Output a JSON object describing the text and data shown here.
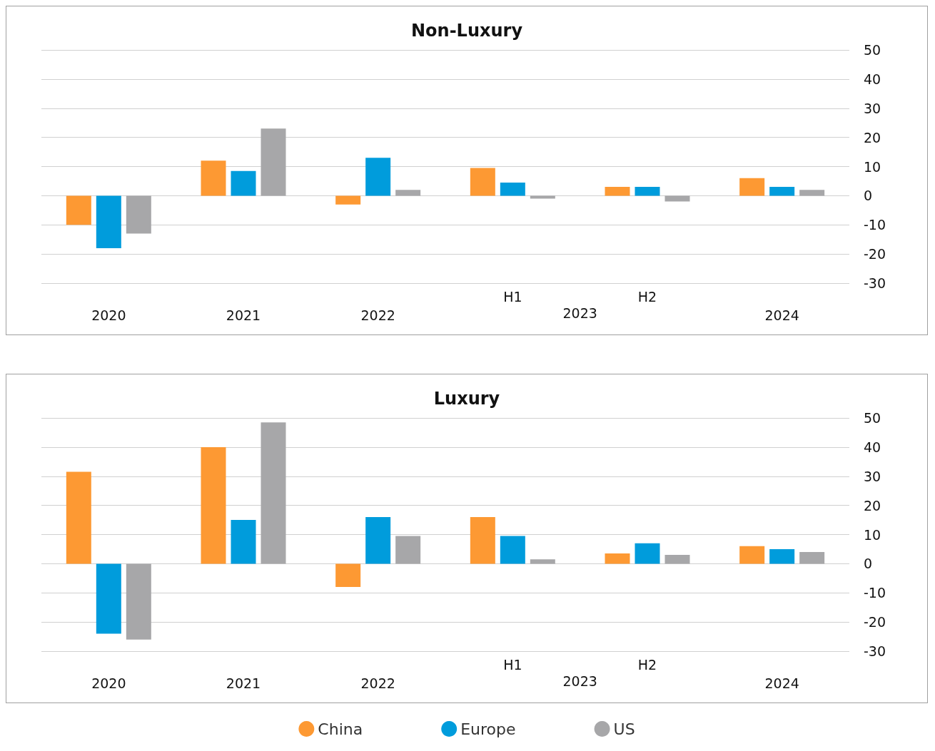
{
  "chart_data": [
    {
      "type": "bar",
      "title": "Non-Luxury",
      "categories": [
        "2020",
        "2021",
        "2022",
        "H1",
        "H2",
        "2024"
      ],
      "annotations": [
        "2023"
      ],
      "series": [
        {
          "color": "#fd9933",
          "values": [
            -10,
            12,
            -3,
            9.5,
            3,
            6
          ]
        },
        {
          "color": "#009cdc",
          "values": [
            -18,
            8.5,
            13,
            4.5,
            3,
            3
          ]
        },
        {
          "color": "#a7a7a9",
          "values": [
            -13,
            23,
            2,
            -1,
            -2,
            2
          ]
        }
      ],
      "ylim": [
        -30,
        50
      ],
      "yticks": [
        -30,
        -20,
        -10,
        0,
        10,
        20,
        30,
        40,
        50
      ],
      "grid": "y",
      "legend": false
    },
    {
      "type": "bar",
      "title": "Luxury",
      "categories": [
        "2020",
        "2021",
        "2022",
        "H1",
        "H2",
        "2024"
      ],
      "annotations": [
        "2023"
      ],
      "series": [
        {
          "name": "China",
          "color": "#fd9933",
          "values": [
            31.5,
            40,
            -8,
            16,
            3.5,
            6
          ]
        },
        {
          "name": "Europe",
          "color": "#009cdc",
          "values": [
            -24,
            15,
            16,
            9.5,
            7,
            5
          ]
        },
        {
          "name": "US",
          "color": "#a7a7a9",
          "values": [
            -26,
            48.5,
            9.5,
            1.5,
            3,
            4
          ]
        }
      ],
      "ylim": [
        -30,
        50
      ],
      "yticks": [
        -30,
        -20,
        -10,
        0,
        10,
        20,
        30,
        40,
        50
      ],
      "grid": "y",
      "legend": "bottom"
    }
  ]
}
